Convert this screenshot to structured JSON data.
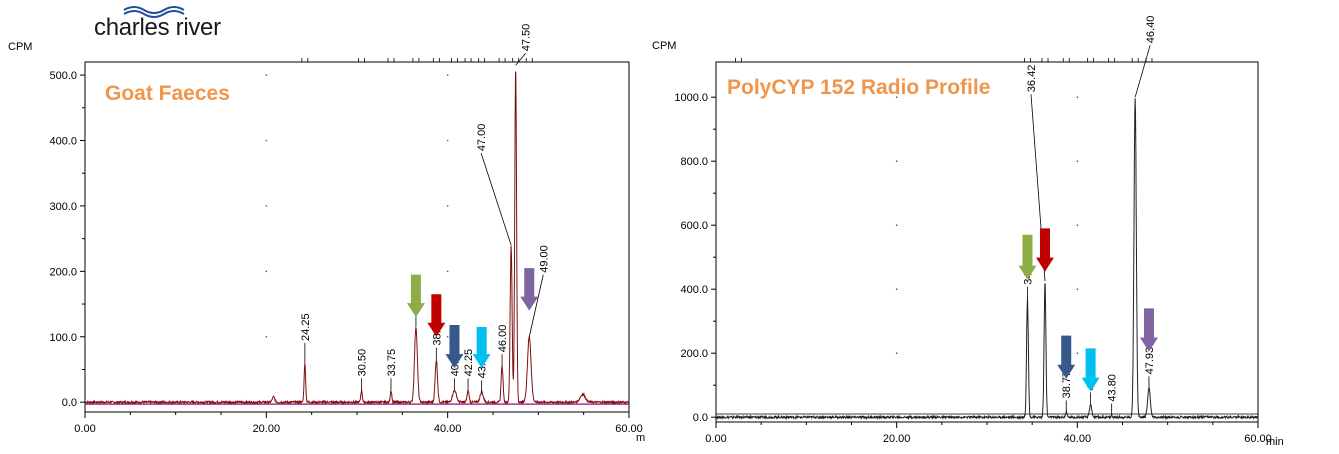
{
  "logo": {
    "text": "charles river"
  },
  "chart_data": [
    {
      "type": "line",
      "title": "Goat Faeces",
      "title_color": "#f0964a",
      "ylabel": "CPM",
      "xlabel_visible": "m",
      "xlim": [
        0,
        60
      ],
      "ylim": [
        -15,
        520
      ],
      "x_ticks": [
        "0.00",
        "20.00",
        "40.00",
        "60.00"
      ],
      "x_tick_values": [
        0,
        20,
        40,
        60
      ],
      "y_ticks": [
        "0.0",
        "100.0",
        "200.0",
        "300.0",
        "400.0",
        "500.0"
      ],
      "y_tick_values": [
        0,
        100,
        200,
        300,
        400,
        500
      ],
      "trace_color": "#7a1010",
      "baseline_color": "#b0309a",
      "peaks": [
        {
          "x": 20.8,
          "y": 8,
          "w": 0.2
        },
        {
          "x": 24.25,
          "y": 60,
          "w": 0.12,
          "label": "24.25"
        },
        {
          "x": 30.5,
          "y": 18,
          "w": 0.12,
          "label": "30.50"
        },
        {
          "x": 33.75,
          "y": 18,
          "w": 0.12,
          "label": "33.75"
        },
        {
          "x": 36.5,
          "y": 115,
          "w": 0.22,
          "label": "36.50"
        },
        {
          "x": 38.75,
          "y": 65,
          "w": 0.18,
          "label": "38.75"
        },
        {
          "x": 40.75,
          "y": 18,
          "w": 0.3,
          "label": "40.75"
        },
        {
          "x": 42.25,
          "y": 18,
          "w": 0.15,
          "label": "42.25"
        },
        {
          "x": 43.75,
          "y": 15,
          "w": 0.25,
          "label": "43.75"
        },
        {
          "x": 46.0,
          "y": 55,
          "w": 0.15,
          "label": "46.00"
        },
        {
          "x": 47.0,
          "y": 240,
          "w": 0.15,
          "label": "47.00"
        },
        {
          "x": 47.5,
          "y": 515,
          "w": 0.14,
          "label": "47.50"
        },
        {
          "x": 49.0,
          "y": 100,
          "w": 0.28,
          "label": "49.00"
        },
        {
          "x": 54.9,
          "y": 12,
          "w": 0.4
        }
      ],
      "arrows": [
        {
          "color": "#8fad47",
          "x": 36.5,
          "y_top": 195,
          "y_tip": 130
        },
        {
          "color": "#c00000",
          "x": 38.75,
          "y_top": 165,
          "y_tip": 100
        },
        {
          "color": "#36588a",
          "x": 40.75,
          "y_top": 118,
          "y_tip": 52
        },
        {
          "color": "#00c0f0",
          "x": 43.75,
          "y_top": 115,
          "y_tip": 52
        },
        {
          "color": "#8064a2",
          "x": 49.0,
          "y_top": 205,
          "y_tip": 140
        }
      ]
    },
    {
      "type": "line",
      "title": "PolyCYP 152 Radio Profile",
      "title_color": "#f0964a",
      "ylabel": "CPM",
      "xlabel": "min",
      "xlim": [
        0,
        60
      ],
      "ylim": [
        -15,
        1110
      ],
      "x_ticks": [
        "0.00",
        "20.00",
        "40.00",
        "60.00"
      ],
      "x_tick_values": [
        0,
        20,
        40,
        60
      ],
      "y_ticks": [
        "0.0",
        "200.0",
        "400.0",
        "600.0",
        "800.0",
        "1000.0"
      ],
      "y_tick_values": [
        0,
        200,
        400,
        600,
        800,
        1000
      ],
      "trace_color": "#222222",
      "peaks": [
        {
          "x": 34.48,
          "y": 370,
          "w": 0.14,
          "label": "34.48"
        },
        {
          "x": 36.42,
          "y": 425,
          "w": 0.14,
          "label": "36.42"
        },
        {
          "x": 38.77,
          "y": 15,
          "w": 0.12,
          "label": "38.77"
        },
        {
          "x": 41.47,
          "y": 40,
          "w": 0.18,
          "label": "41.47"
        },
        {
          "x": 43.8,
          "y": 5,
          "w": 0.1,
          "label": "43.80"
        },
        {
          "x": 46.4,
          "y": 1000,
          "w": 0.18,
          "label": "46.40"
        },
        {
          "x": 47.93,
          "y": 90,
          "w": 0.22,
          "label": "47.93"
        }
      ],
      "arrows": [
        {
          "color": "#8fad47",
          "x": 34.48,
          "y_top": 570,
          "y_tip": 430
        },
        {
          "color": "#c00000",
          "x": 36.42,
          "y_top": 590,
          "y_tip": 455
        },
        {
          "color": "#36588a",
          "x": 38.77,
          "y_top": 255,
          "y_tip": 120
        },
        {
          "color": "#00c0f0",
          "x": 41.47,
          "y_top": 215,
          "y_tip": 80
        },
        {
          "color": "#8064a2",
          "x": 47.93,
          "y_top": 340,
          "y_tip": 205
        }
      ]
    }
  ]
}
